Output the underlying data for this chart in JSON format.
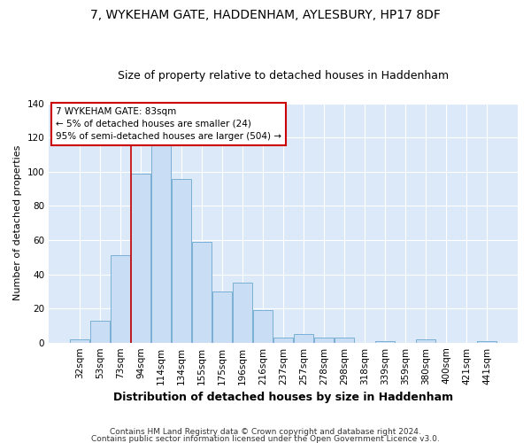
{
  "title": "7, WYKEHAM GATE, HADDENHAM, AYLESBURY, HP17 8DF",
  "subtitle": "Size of property relative to detached houses in Haddenham",
  "xlabel": "Distribution of detached houses by size in Haddenham",
  "ylabel": "Number of detached properties",
  "categories": [
    "32sqm",
    "53sqm",
    "73sqm",
    "94sqm",
    "114sqm",
    "134sqm",
    "155sqm",
    "175sqm",
    "196sqm",
    "216sqm",
    "237sqm",
    "257sqm",
    "278sqm",
    "298sqm",
    "318sqm",
    "339sqm",
    "359sqm",
    "380sqm",
    "400sqm",
    "421sqm",
    "441sqm"
  ],
  "values": [
    2,
    13,
    51,
    99,
    116,
    96,
    59,
    30,
    35,
    19,
    3,
    5,
    3,
    3,
    0,
    1,
    0,
    2,
    0,
    0,
    1
  ],
  "bar_color": "#c9ddf5",
  "bar_edge_color": "#7bafd4",
  "vline_color": "#cc0000",
  "vline_x": 2.5,
  "annotation_title": "7 WYKEHAM GATE: 83sqm",
  "annotation_line1": "← 5% of detached houses are smaller (24)",
  "annotation_line2": "95% of semi-detached houses are larger (504) →",
  "annotation_box_color": "#ffffff",
  "annotation_box_edge": "#cc0000",
  "ylim": [
    0,
    140
  ],
  "yticks": [
    0,
    20,
    40,
    60,
    80,
    100,
    120,
    140
  ],
  "footer1": "Contains HM Land Registry data © Crown copyright and database right 2024.",
  "footer2": "Contains public sector information licensed under the Open Government Licence v3.0.",
  "bg_color": "#ffffff",
  "plot_bg": "#dce9f8",
  "title_fontsize": 10,
  "subtitle_fontsize": 9,
  "xlabel_fontsize": 9,
  "ylabel_fontsize": 8,
  "tick_fontsize": 7.5,
  "footer_fontsize": 6.5
}
